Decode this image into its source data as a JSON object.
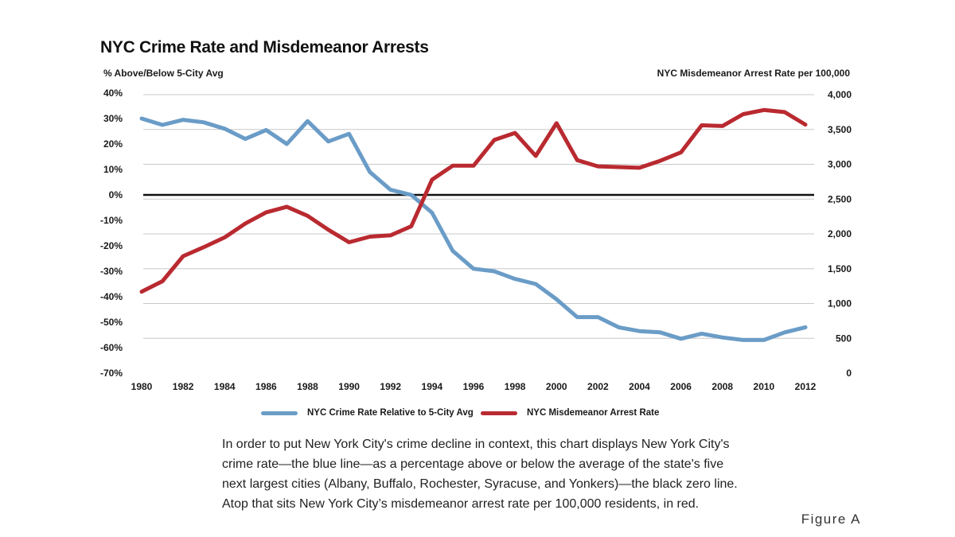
{
  "chart_data": {
    "type": "line",
    "title": "NYC Crime Rate and Misdemeanor Arrests",
    "ylabel_left": "% Above/Below 5-City Avg",
    "ylabel_right": "NYC Misdemeanor Arrest Rate per 100,000",
    "x": [
      1980,
      1981,
      1982,
      1983,
      1984,
      1985,
      1986,
      1987,
      1988,
      1989,
      1990,
      1991,
      1992,
      1993,
      1994,
      1995,
      1996,
      1997,
      1998,
      1999,
      2000,
      2001,
      2002,
      2003,
      2004,
      2005,
      2006,
      2007,
      2008,
      2009,
      2010,
      2011,
      2012
    ],
    "x_tick_labels": [
      "1980",
      "1982",
      "1984",
      "1986",
      "1988",
      "1990",
      "1992",
      "1994",
      "1996",
      "1998",
      "2000",
      "2002",
      "2004",
      "2006",
      "2008",
      "2010",
      "2012"
    ],
    "y_left_ticks": [
      40,
      30,
      20,
      10,
      0,
      -10,
      -20,
      -30,
      -40,
      -50,
      -60,
      -70
    ],
    "y_left_tick_labels": [
      "40%",
      "30%",
      "20%",
      "10%",
      "0%",
      "-10%",
      "-20%",
      "-30%",
      "-40%",
      "-50%",
      "-60%",
      "-70%"
    ],
    "y_left_lim": [
      -70,
      40
    ],
    "y_right_ticks": [
      4000,
      3500,
      3000,
      2500,
      2000,
      1500,
      1000,
      500,
      0
    ],
    "y_right_tick_labels": [
      "4,000",
      "3,500",
      "3,000",
      "2,500",
      "2,000",
      "1,500",
      "1,000",
      "500",
      "0"
    ],
    "y_right_lim": [
      0,
      4000
    ],
    "grid": true,
    "zero_line": true,
    "legend_position": "bottom",
    "series": [
      {
        "name": "NYC Crime Rate Relative to 5-City Avg",
        "axis": "left",
        "color": "#6a9cc7",
        "values": [
          30,
          27.5,
          29.5,
          28.5,
          26,
          22,
          25.5,
          20,
          29,
          21,
          24,
          9,
          2,
          0,
          -7,
          -22,
          -29,
          -30,
          -33,
          -35,
          -41,
          -48,
          -48,
          -52,
          -53.5,
          -54,
          -56.5,
          -54.5,
          -56,
          -57,
          -57,
          -54,
          -52
        ]
      },
      {
        "name": "NYC Misdemeanor Arrest Rate",
        "axis": "right",
        "color": "#b92a30",
        "values": [
          1170,
          1320,
          1680,
          1810,
          1950,
          2150,
          2310,
          2390,
          2260,
          2060,
          1880,
          1960,
          1980,
          2110,
          2780,
          2980,
          2980,
          3350,
          3450,
          3120,
          3590,
          3060,
          2970,
          2960,
          2950,
          3050,
          3170,
          3560,
          3550,
          3720,
          3780,
          3750,
          3570
        ]
      }
    ]
  },
  "caption": [
    "In order to put New York City's crime decline in context, this chart displays New York City's",
    "crime rate—the blue line—as a percentage above or below the average of the state's five",
    "next largest cities (Albany, Buffalo, Rochester, Syracuse, and Yonkers)—the black zero line.",
    "Atop that sits New York City’s misdemeanor arrest rate per 100,000 residents, in red."
  ],
  "figure_label": "Figure A"
}
